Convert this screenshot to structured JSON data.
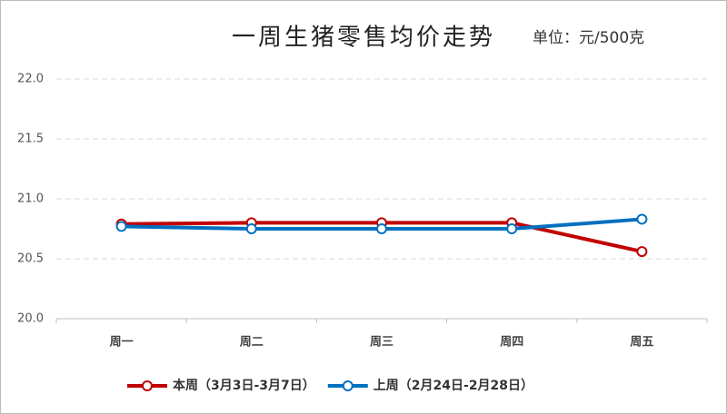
{
  "chart_data": {
    "type": "line",
    "title": "一周生猪零售均价走势",
    "subtitle": "单位：元/500克",
    "categories": [
      "周一",
      "周二",
      "周三",
      "周四",
      "周五"
    ],
    "series": [
      {
        "name": "本周（3月3日-3月7日）",
        "color": "#c00000",
        "values": [
          20.79,
          20.8,
          20.8,
          20.8,
          20.56
        ]
      },
      {
        "name": "上周（2月24日-2月28日）",
        "color": "#0070c0",
        "values": [
          20.77,
          20.75,
          20.75,
          20.75,
          20.83
        ]
      }
    ],
    "ylim": [
      20.0,
      22.0
    ],
    "yticks": [
      {
        "value": 20,
        "label": "20.0"
      },
      {
        "value": 20.5,
        "label": "20.5"
      },
      {
        "value": 21,
        "label": "21.0"
      },
      {
        "value": 21.5,
        "label": "21.5"
      },
      {
        "value": 22,
        "label": "22.0"
      }
    ],
    "grid": true,
    "legend": "bottom"
  }
}
